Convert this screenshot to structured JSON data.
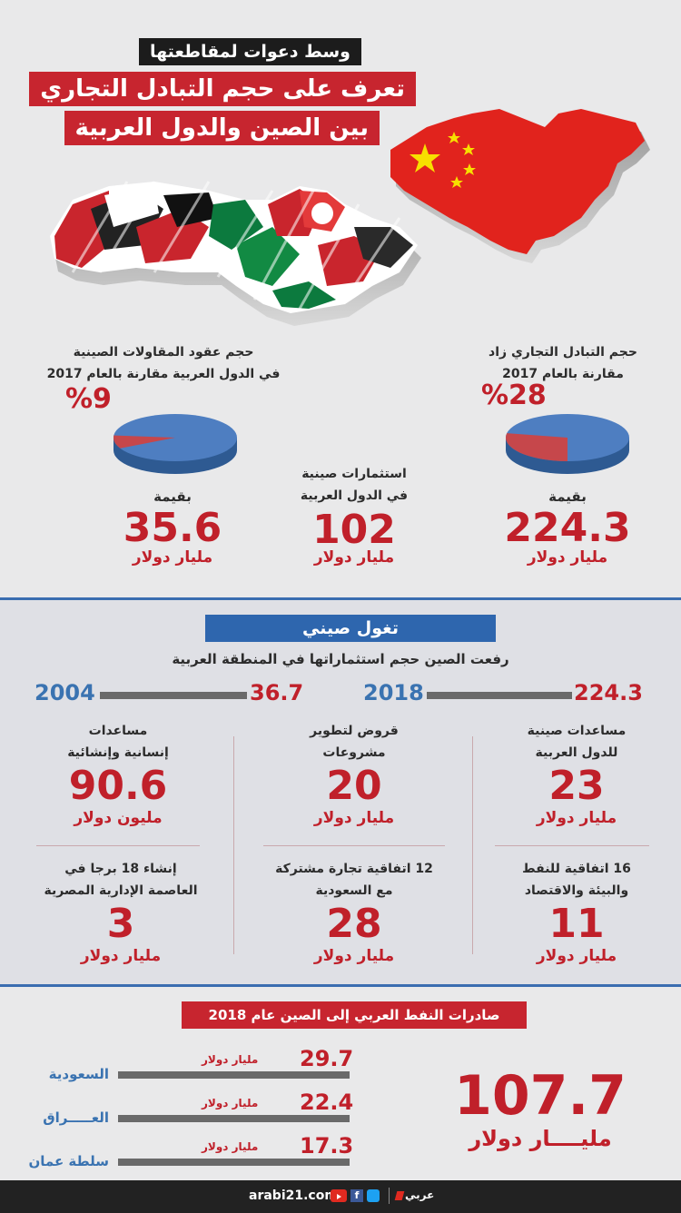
{
  "header": {
    "line1": "وسط دعوات لمقاطعتها",
    "line2": "تعرف على حجم التبادل التجاري",
    "line3": "بين الصين والدول العربية"
  },
  "stats_top": {
    "trade": {
      "caption": [
        "حجم التبادل التجاري زاد",
        "مقارنة بالعام 2017"
      ],
      "percent": "%28",
      "value_label": "بقيمة",
      "value": "224.3",
      "unit": "مليار دولار"
    },
    "investments": {
      "caption": [
        "استثمارات صينية",
        "في الدول العربية"
      ],
      "value": "102",
      "unit": "مليار دولار"
    },
    "contracts": {
      "caption": [
        "حجم عقود المقاولات الصينية",
        "في الدول العربية مقارنة بالعام 2017"
      ],
      "percent": "%9",
      "value_label": "بقيمة",
      "value": "35.6",
      "unit": "مليار دولار"
    }
  },
  "pie_shares": {
    "trade": 0.28,
    "contracts": 0.09
  },
  "colors": {
    "red": "#c0202a",
    "blue": "#3a73b1",
    "pie_blue": "#4e7ec1",
    "pie_red": "#c6474b"
  },
  "incursion": {
    "title": "تغول صيني",
    "subtitle": "رفعت الصين حجم استثماراتها في المنطقة العربية",
    "compare": {
      "right_value": "224.3",
      "right_year": "2018",
      "left_value": "36.7",
      "left_year": "2004"
    },
    "items": [
      {
        "caption": [
          "مساعدات صينية",
          "للدول العربية"
        ],
        "value": "23",
        "unit": "مليار دولار"
      },
      {
        "caption": [
          "قروض لتطوير",
          "مشروعات"
        ],
        "value": "20",
        "unit": "مليار دولار"
      },
      {
        "caption": [
          "مساعدات",
          "إنسانية وإنشائية"
        ],
        "value": "90.6",
        "unit": "مليون دولار"
      },
      {
        "caption": [
          "16 اتفاقية للنفط",
          "والبيئة والاقتصاد"
        ],
        "value": "11",
        "unit": "مليار دولار"
      },
      {
        "caption": [
          "12 اتفاقية تجارة مشتركة",
          "مع السعودية"
        ],
        "value": "28",
        "unit": "مليار دولار"
      },
      {
        "caption": [
          "إنشاء 18 برجا في",
          "العاصمة الإدارية المصرية"
        ],
        "value": "3",
        "unit": "مليار دولار"
      }
    ]
  },
  "oil": {
    "title": "صادرات النفط العربي إلى الصين عام 2018",
    "rows": [
      {
        "country": "السعودية",
        "value": "29.7",
        "unit": "مليار دولار"
      },
      {
        "country": "العـــــراق",
        "value": "22.4",
        "unit": "مليار دولار"
      },
      {
        "country": "سلطة عمان",
        "value": "17.3",
        "unit": "مليار دولار"
      }
    ],
    "total": "107.7",
    "total_unit": "مليــــار دولار"
  },
  "footer": {
    "site": "arabi21.com",
    "brand": "عربي"
  }
}
